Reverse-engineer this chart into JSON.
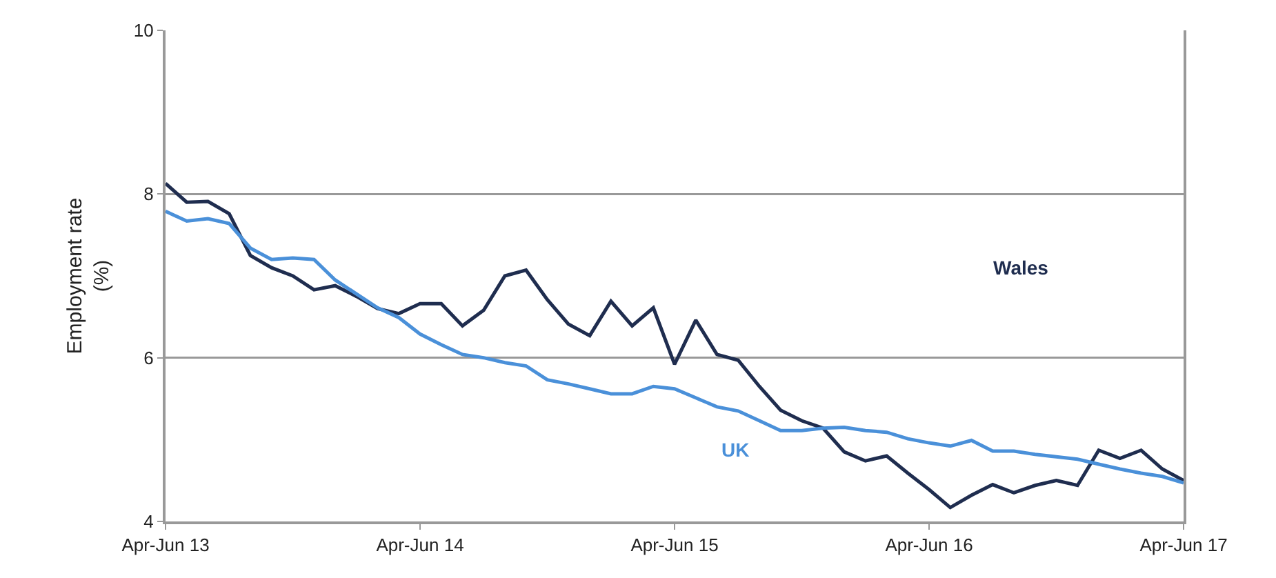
{
  "chart_data": {
    "type": "line",
    "ylabel": "Employment rate (%)",
    "categories": [
      "Apr-Jun 13",
      null,
      null,
      null,
      null,
      null,
      null,
      null,
      null,
      null,
      null,
      null,
      "Apr-Jun 14",
      null,
      null,
      null,
      null,
      null,
      null,
      null,
      null,
      null,
      null,
      null,
      "Apr-Jun 15",
      null,
      null,
      null,
      null,
      null,
      null,
      null,
      null,
      null,
      null,
      null,
      "Apr-Jun 16",
      null,
      null,
      null,
      null,
      null,
      null,
      null,
      null,
      null,
      null,
      null,
      "Apr-Jun 17"
    ],
    "series": [
      {
        "name": "Wales",
        "color": "#1f2d4f",
        "values": [
          8.13,
          7.9,
          7.91,
          7.76,
          7.25,
          7.1,
          7.0,
          6.83,
          6.88,
          6.75,
          6.6,
          6.54,
          6.66,
          6.66,
          6.39,
          6.58,
          7.0,
          7.07,
          6.71,
          6.41,
          6.27,
          6.69,
          6.39,
          6.61,
          5.92,
          6.46,
          6.04,
          5.97,
          5.65,
          5.36,
          5.23,
          5.14,
          4.85,
          4.74,
          4.8,
          4.59,
          4.39,
          4.17,
          4.32,
          4.45,
          4.35,
          4.44,
          4.5,
          4.44,
          4.87,
          4.77,
          4.87,
          4.64,
          4.5
        ]
      },
      {
        "name": "UK",
        "color": "#4a90d9",
        "values": [
          7.79,
          7.67,
          7.7,
          7.64,
          7.34,
          7.2,
          7.22,
          7.2,
          6.95,
          6.78,
          6.61,
          6.49,
          6.29,
          6.16,
          6.04,
          6.0,
          5.94,
          5.9,
          5.73,
          5.68,
          5.62,
          5.56,
          5.56,
          5.65,
          5.62,
          5.51,
          5.4,
          5.35,
          5.23,
          5.11,
          5.11,
          5.14,
          5.15,
          5.11,
          5.09,
          5.01,
          4.96,
          4.92,
          4.99,
          4.86,
          4.86,
          4.82,
          4.79,
          4.76,
          4.7,
          4.64,
          4.59,
          4.55,
          4.47
        ]
      }
    ],
    "ylim": [
      4,
      10
    ],
    "yticks": [
      4,
      6,
      8,
      10
    ],
    "grid": "y",
    "legend": false,
    "marker": "none",
    "line_style": "solid"
  }
}
